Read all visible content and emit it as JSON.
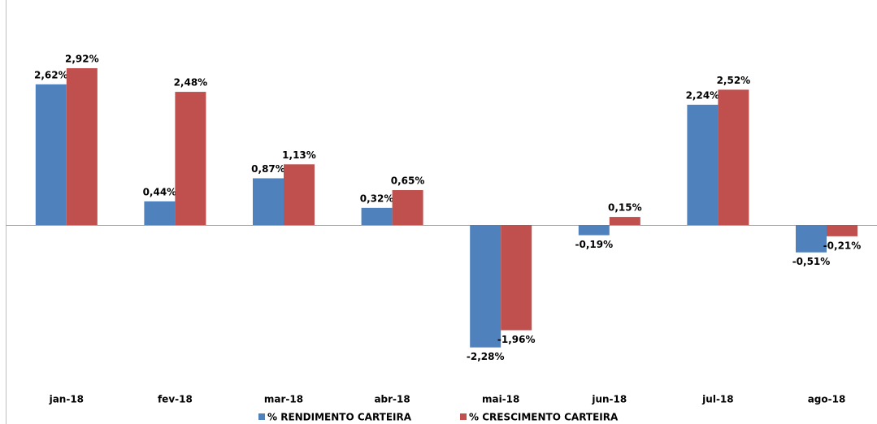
{
  "chart_data": {
    "type": "bar",
    "categories": [
      "jan-18",
      "fev-18",
      "mar-18",
      "abr-18",
      "mai-18",
      "jun-18",
      "jul-18",
      "ago-18"
    ],
    "series": [
      {
        "name": "% RENDIMENTO CARTEIRA",
        "color": "#4f81bd",
        "values": [
          2.62,
          0.44,
          0.87,
          0.32,
          -2.28,
          -0.19,
          2.24,
          -0.51
        ],
        "value_labels": [
          "2,62%",
          "0,44%",
          "0,87%",
          "0,32%",
          "-2,28%",
          "-0,19%",
          "2,24%",
          "-0,51%"
        ]
      },
      {
        "name": "% CRESCIMENTO CARTEIRA",
        "color": "#c0504d",
        "values": [
          2.92,
          2.48,
          1.13,
          0.65,
          -1.96,
          0.15,
          2.52,
          -0.21
        ],
        "value_labels": [
          "2,92%",
          "2,48%",
          "1,13%",
          "0,65%",
          "-1,96%",
          "0,15%",
          "2,52%",
          "-0,21%"
        ]
      }
    ],
    "legend": "bottom"
  }
}
